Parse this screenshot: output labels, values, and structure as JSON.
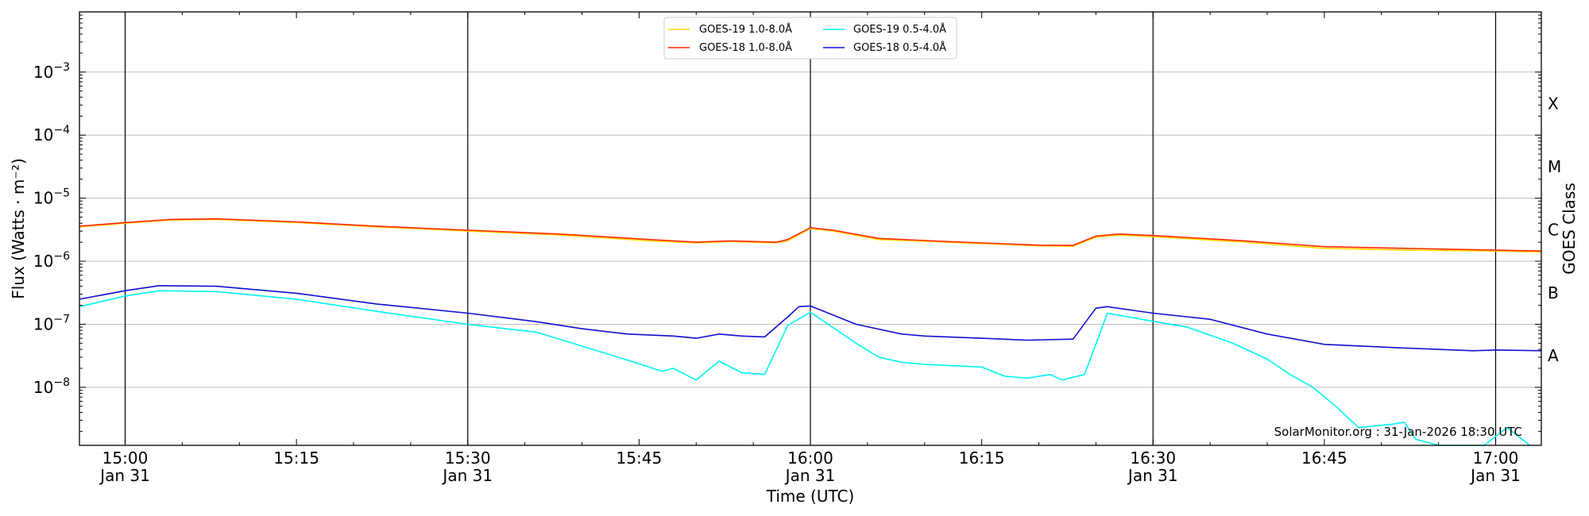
{
  "chart_data": {
    "type": "line",
    "title": "",
    "xlabel": "Time (UTC)",
    "ylabel": "Flux (Watts · m⁻²)",
    "right_ylabel": "GOES Class",
    "y_scale": "log",
    "ylim": [
      1.2e-09,
      0.009
    ],
    "xlim": [
      "14:56",
      "17:04"
    ],
    "x_ticks": [
      {
        "t": "15:00",
        "line1": "15:00",
        "line2": "Jan 31",
        "gridline": true
      },
      {
        "t": "15:15",
        "line1": "15:15",
        "line2": "",
        "gridline": false
      },
      {
        "t": "15:30",
        "line1": "15:30",
        "line2": "Jan 31",
        "gridline": true
      },
      {
        "t": "15:45",
        "line1": "15:45",
        "line2": "",
        "gridline": false
      },
      {
        "t": "16:00",
        "line1": "16:00",
        "line2": "Jan 31",
        "gridline": true
      },
      {
        "t": "16:15",
        "line1": "16:15",
        "line2": "",
        "gridline": false
      },
      {
        "t": "16:30",
        "line1": "16:30",
        "line2": "Jan 31",
        "gridline": true
      },
      {
        "t": "16:45",
        "line1": "16:45",
        "line2": "",
        "gridline": false
      },
      {
        "t": "17:00",
        "line1": "17:00",
        "line2": "Jan 31",
        "gridline": true
      }
    ],
    "y_ticks": [
      {
        "value": 1e-08,
        "base": "10",
        "exp": "−8"
      },
      {
        "value": 1e-07,
        "base": "10",
        "exp": "−7"
      },
      {
        "value": 1e-06,
        "base": "10",
        "exp": "−6"
      },
      {
        "value": 1e-05,
        "base": "10",
        "exp": "−5"
      },
      {
        "value": 0.0001,
        "base": "10",
        "exp": "−4"
      },
      {
        "value": 0.001,
        "base": "10",
        "exp": "−3"
      }
    ],
    "goes_classes": [
      {
        "label": "A",
        "value": 3.16e-08
      },
      {
        "label": "B",
        "value": 3.16e-07
      },
      {
        "label": "C",
        "value": 3.16e-06
      },
      {
        "label": "M",
        "value": 3.16e-05
      },
      {
        "label": "X",
        "value": 0.000316
      }
    ],
    "grid": "horizontal at decades, vertical at half-hour marks",
    "legend_position": "top-center",
    "series": [
      {
        "name": "GOES-19 1.0-8.0Å",
        "color": "#ffd700",
        "points": [
          [
            "14:56",
            3.5e-06
          ],
          [
            "15:00",
            4e-06
          ],
          [
            "15:04",
            4.5e-06
          ],
          [
            "15:08",
            4.6e-06
          ],
          [
            "15:15",
            4.1e-06
          ],
          [
            "15:22",
            3.5e-06
          ],
          [
            "15:30",
            3e-06
          ],
          [
            "15:38",
            2.6e-06
          ],
          [
            "15:46",
            2.1e-06
          ],
          [
            "15:50",
            1.95e-06
          ],
          [
            "15:53",
            2.05e-06
          ],
          [
            "15:57",
            1.95e-06
          ],
          [
            "15:58",
            2.1e-06
          ],
          [
            "16:00",
            3.3e-06
          ],
          [
            "16:02",
            3e-06
          ],
          [
            "16:06",
            2.2e-06
          ],
          [
            "16:12",
            2e-06
          ],
          [
            "16:20",
            1.75e-06
          ],
          [
            "16:23",
            1.72e-06
          ],
          [
            "16:25",
            2.4e-06
          ],
          [
            "16:27",
            2.6e-06
          ],
          [
            "16:30",
            2.45e-06
          ],
          [
            "16:38",
            2e-06
          ],
          [
            "16:45",
            1.6e-06
          ],
          [
            "16:52",
            1.5e-06
          ],
          [
            "17:00",
            1.45e-06
          ],
          [
            "17:04",
            1.4e-06
          ]
        ]
      },
      {
        "name": "GOES-18 1.0-8.0Å",
        "color": "#ff2a00",
        "points": [
          [
            "14:56",
            3.6e-06
          ],
          [
            "15:00",
            4.1e-06
          ],
          [
            "15:04",
            4.6e-06
          ],
          [
            "15:08",
            4.7e-06
          ],
          [
            "15:15",
            4.2e-06
          ],
          [
            "15:22",
            3.6e-06
          ],
          [
            "15:30",
            3.1e-06
          ],
          [
            "15:38",
            2.7e-06
          ],
          [
            "15:46",
            2.2e-06
          ],
          [
            "15:50",
            2e-06
          ],
          [
            "15:53",
            2.1e-06
          ],
          [
            "15:57",
            2e-06
          ],
          [
            "15:58",
            2.2e-06
          ],
          [
            "16:00",
            3.4e-06
          ],
          [
            "16:02",
            3.1e-06
          ],
          [
            "16:06",
            2.3e-06
          ],
          [
            "16:12",
            2.05e-06
          ],
          [
            "16:20",
            1.8e-06
          ],
          [
            "16:23",
            1.78e-06
          ],
          [
            "16:25",
            2.5e-06
          ],
          [
            "16:27",
            2.7e-06
          ],
          [
            "16:30",
            2.55e-06
          ],
          [
            "16:38",
            2.1e-06
          ],
          [
            "16:45",
            1.7e-06
          ],
          [
            "16:52",
            1.6e-06
          ],
          [
            "17:00",
            1.5e-06
          ],
          [
            "17:04",
            1.45e-06
          ]
        ]
      },
      {
        "name": "GOES-19 0.5-4.0Å",
        "color": "#00f5f5",
        "points": [
          [
            "14:56",
            1.9e-07
          ],
          [
            "15:00",
            2.8e-07
          ],
          [
            "15:03",
            3.4e-07
          ],
          [
            "15:08",
            3.3e-07
          ],
          [
            "15:15",
            2.5e-07
          ],
          [
            "15:22",
            1.6e-07
          ],
          [
            "15:30",
            1e-07
          ],
          [
            "15:36",
            7.5e-08
          ],
          [
            "15:40",
            4.5e-08
          ],
          [
            "15:44",
            2.7e-08
          ],
          [
            "15:47",
            1.8e-08
          ],
          [
            "15:48",
            2e-08
          ],
          [
            "15:50",
            1.3e-08
          ],
          [
            "15:52",
            2.6e-08
          ],
          [
            "15:54",
            1.7e-08
          ],
          [
            "15:56",
            1.6e-08
          ],
          [
            "15:58",
            9.5e-08
          ],
          [
            "16:00",
            1.55e-07
          ],
          [
            "16:04",
            5e-08
          ],
          [
            "16:06",
            3e-08
          ],
          [
            "16:08",
            2.5e-08
          ],
          [
            "16:10",
            2.3e-08
          ],
          [
            "16:15",
            2.1e-08
          ],
          [
            "16:17",
            1.5e-08
          ],
          [
            "16:19",
            1.4e-08
          ],
          [
            "16:21",
            1.6e-08
          ],
          [
            "16:22",
            1.3e-08
          ],
          [
            "16:24",
            1.6e-08
          ],
          [
            "16:26",
            1.5e-07
          ],
          [
            "16:29",
            1.2e-07
          ],
          [
            "16:33",
            9e-08
          ],
          [
            "16:37",
            5e-08
          ],
          [
            "16:40",
            2.8e-08
          ],
          [
            "16:42",
            1.6e-08
          ],
          [
            "16:44",
            1e-08
          ],
          [
            "16:46",
            5e-09
          ],
          [
            "16:48",
            2.3e-09
          ],
          [
            "16:51",
            2.6e-09
          ],
          [
            "16:52",
            2.8e-09
          ],
          [
            "16:53",
            1.5e-09
          ],
          [
            "16:55",
            1.2e-09
          ],
          [
            "16:59",
            1.2e-09
          ],
          [
            "17:01",
            2.3e-09
          ],
          [
            "17:03",
            1.2e-09
          ]
        ]
      },
      {
        "name": "GOES-18 0.5-4.0Å",
        "color": "#1010d0",
        "points": [
          [
            "14:56",
            2.5e-07
          ],
          [
            "15:00",
            3.4e-07
          ],
          [
            "15:03",
            4.1e-07
          ],
          [
            "15:08",
            4e-07
          ],
          [
            "15:15",
            3.1e-07
          ],
          [
            "15:22",
            2.1e-07
          ],
          [
            "15:30",
            1.5e-07
          ],
          [
            "15:36",
            1.1e-07
          ],
          [
            "15:40",
            8.5e-08
          ],
          [
            "15:44",
            7e-08
          ],
          [
            "15:48",
            6.5e-08
          ],
          [
            "15:50",
            6e-08
          ],
          [
            "15:52",
            7e-08
          ],
          [
            "15:54",
            6.5e-08
          ],
          [
            "15:56",
            6.3e-08
          ],
          [
            "15:58",
            1.3e-07
          ],
          [
            "15:59",
            1.9e-07
          ],
          [
            "16:00",
            1.95e-07
          ],
          [
            "16:04",
            1e-07
          ],
          [
            "16:08",
            7e-08
          ],
          [
            "16:10",
            6.5e-08
          ],
          [
            "16:15",
            6e-08
          ],
          [
            "16:19",
            5.6e-08
          ],
          [
            "16:23",
            5.8e-08
          ],
          [
            "16:25",
            1.8e-07
          ],
          [
            "16:26",
            1.9e-07
          ],
          [
            "16:30",
            1.5e-07
          ],
          [
            "16:35",
            1.2e-07
          ],
          [
            "16:40",
            7e-08
          ],
          [
            "16:45",
            4.8e-08
          ],
          [
            "16:52",
            4.2e-08
          ],
          [
            "16:58",
            3.8e-08
          ],
          [
            "17:00",
            3.9e-08
          ],
          [
            "17:04",
            3.8e-08
          ]
        ]
      }
    ]
  },
  "credit": "SolarMonitor.org : 31-Jan-2026 18:30 UTC"
}
